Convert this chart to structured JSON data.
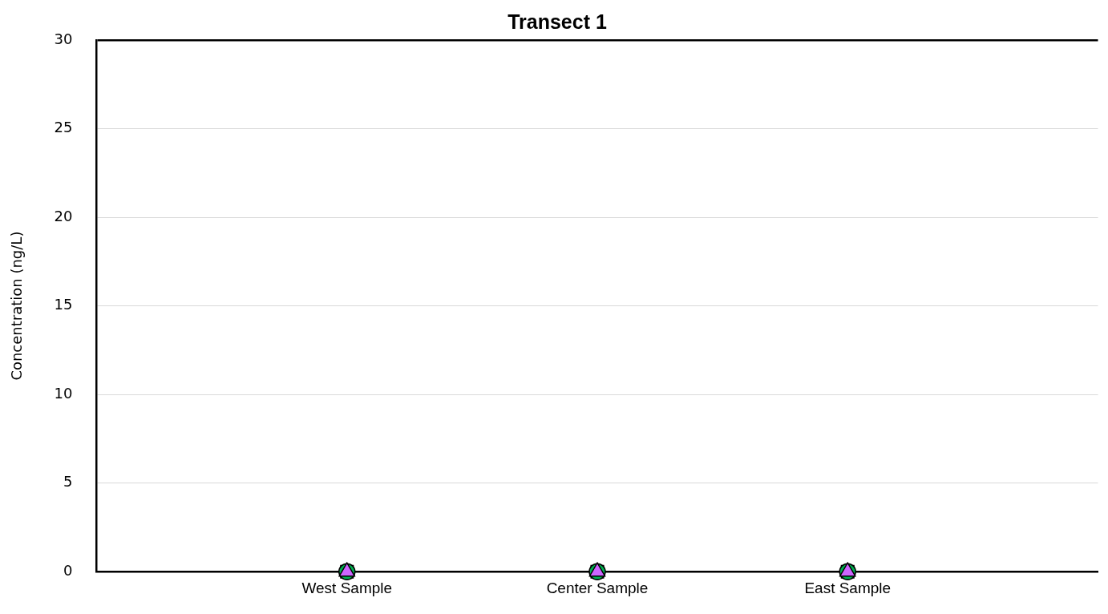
{
  "chart_data": {
    "type": "scatter",
    "title": "Transect 1",
    "ylabel": "Concentration (ng/L)",
    "categories": [
      null,
      "West Sample",
      "Center Sample",
      "East Sample",
      null
    ],
    "series": [
      {
        "color": "#4472c4",
        "marker": "square",
        "values": [
          null,
          0,
          0,
          0,
          null
        ]
      },
      {
        "color": "#00b050",
        "marker": "circle",
        "values": [
          null,
          0,
          0,
          0,
          null
        ]
      },
      {
        "color": "#cc66ff",
        "marker": "triangle",
        "values": [
          null,
          0,
          0,
          0,
          null
        ]
      }
    ],
    "ylim": [
      0,
      30
    ],
    "yticks": [
      0,
      5,
      10,
      15,
      20,
      25,
      30
    ],
    "grid": "y",
    "legend": false
  }
}
